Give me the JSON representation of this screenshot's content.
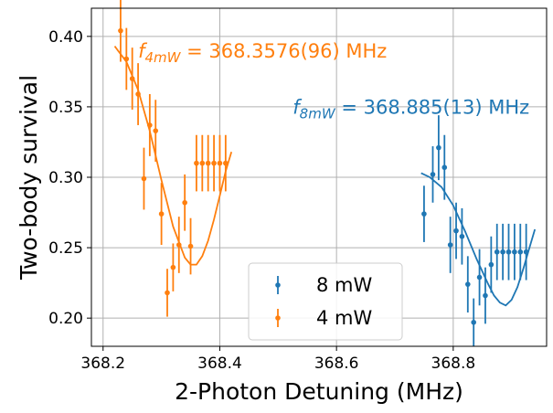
{
  "chart_data": {
    "type": "scatter",
    "xlabel": "2-Photon Detuning (MHz)",
    "ylabel": "Two-body survival",
    "xlim": [
      368.18,
      368.96
    ],
    "ylim": [
      0.18,
      0.42
    ],
    "xticks": [
      368.2,
      368.4,
      368.6,
      368.8
    ],
    "xtick_labels": [
      "368.2",
      "368.4",
      "368.6",
      "368.8"
    ],
    "yticks": [
      0.2,
      0.25,
      0.3,
      0.35,
      0.4
    ],
    "ytick_labels": [
      "0.20",
      "0.25",
      "0.30",
      "0.35",
      "0.40"
    ],
    "grid": true,
    "legend_position": "bottom-center",
    "series": [
      {
        "name": "8 mW",
        "color": "#1f77b4",
        "x": [
          368.75,
          368.765,
          368.775,
          368.785,
          368.795,
          368.805,
          368.815,
          368.825,
          368.835,
          368.845,
          368.855,
          368.865,
          368.875,
          368.885,
          368.895,
          368.905,
          368.915,
          368.925
        ],
        "y": [
          0.274,
          0.302,
          0.321,
          0.307,
          0.252,
          0.262,
          0.258,
          0.224,
          0.197,
          0.229,
          0.216,
          0.238,
          0.247,
          0.247,
          0.247,
          0.247,
          0.247,
          0.247
        ],
        "yerr": [
          0.02,
          0.02,
          0.023,
          0.023,
          0.02,
          0.02,
          0.02,
          0.02,
          0.017,
          0.02,
          0.02,
          0.02,
          0.02,
          0.02,
          0.02,
          0.02,
          0.02,
          0.02
        ]
      },
      {
        "name": "4 mW",
        "color": "#ff7f0e",
        "x": [
          368.23,
          368.24,
          368.25,
          368.26,
          368.27,
          368.28,
          368.29,
          368.3,
          368.31,
          368.32,
          368.33,
          368.34,
          368.35,
          368.36,
          368.37,
          368.38,
          368.39,
          368.4,
          368.41
        ],
        "y": [
          0.404,
          0.384,
          0.37,
          0.359,
          0.299,
          0.337,
          0.333,
          0.274,
          0.218,
          0.236,
          0.252,
          0.282,
          0.251,
          0.31,
          0.31,
          0.31,
          0.31,
          0.31,
          0.31
        ],
        "yerr": [
          0.022,
          0.022,
          0.022,
          0.022,
          0.022,
          0.022,
          0.022,
          0.022,
          0.017,
          0.017,
          0.02,
          0.02,
          0.02,
          0.02,
          0.02,
          0.02,
          0.02,
          0.02,
          0.02
        ]
      }
    ],
    "fits": [
      {
        "series": "8 mW",
        "color": "#1f77b4",
        "x": [
          368.745,
          368.76,
          368.78,
          368.8,
          368.82,
          368.84,
          368.86,
          368.87,
          368.88,
          368.89,
          368.9,
          368.91,
          368.92,
          368.93,
          368.94
        ],
        "y": [
          0.303,
          0.3,
          0.293,
          0.28,
          0.262,
          0.242,
          0.224,
          0.216,
          0.211,
          0.209,
          0.213,
          0.222,
          0.235,
          0.249,
          0.263
        ]
      },
      {
        "series": "4 mW",
        "color": "#ff7f0e",
        "x": [
          368.22,
          368.24,
          368.26,
          368.28,
          368.3,
          368.32,
          368.34,
          368.35,
          368.36,
          368.37,
          368.38,
          368.39,
          368.4,
          368.41,
          368.42
        ],
        "y": [
          0.393,
          0.382,
          0.362,
          0.333,
          0.298,
          0.265,
          0.243,
          0.238,
          0.238,
          0.244,
          0.255,
          0.27,
          0.287,
          0.304,
          0.318
        ]
      }
    ],
    "annotations": [
      {
        "text_main": "f",
        "text_sub": "4mW",
        "text_rest": " = 368.3576(96) MHz",
        "color": "#ff7f0e",
        "x": 368.26,
        "y": 0.385
      },
      {
        "text_main": "f",
        "text_sub": "8mW",
        "text_rest": " = 368.885(13) MHz",
        "color": "#1f77b4",
        "x": 368.525,
        "y": 0.345
      }
    ]
  }
}
